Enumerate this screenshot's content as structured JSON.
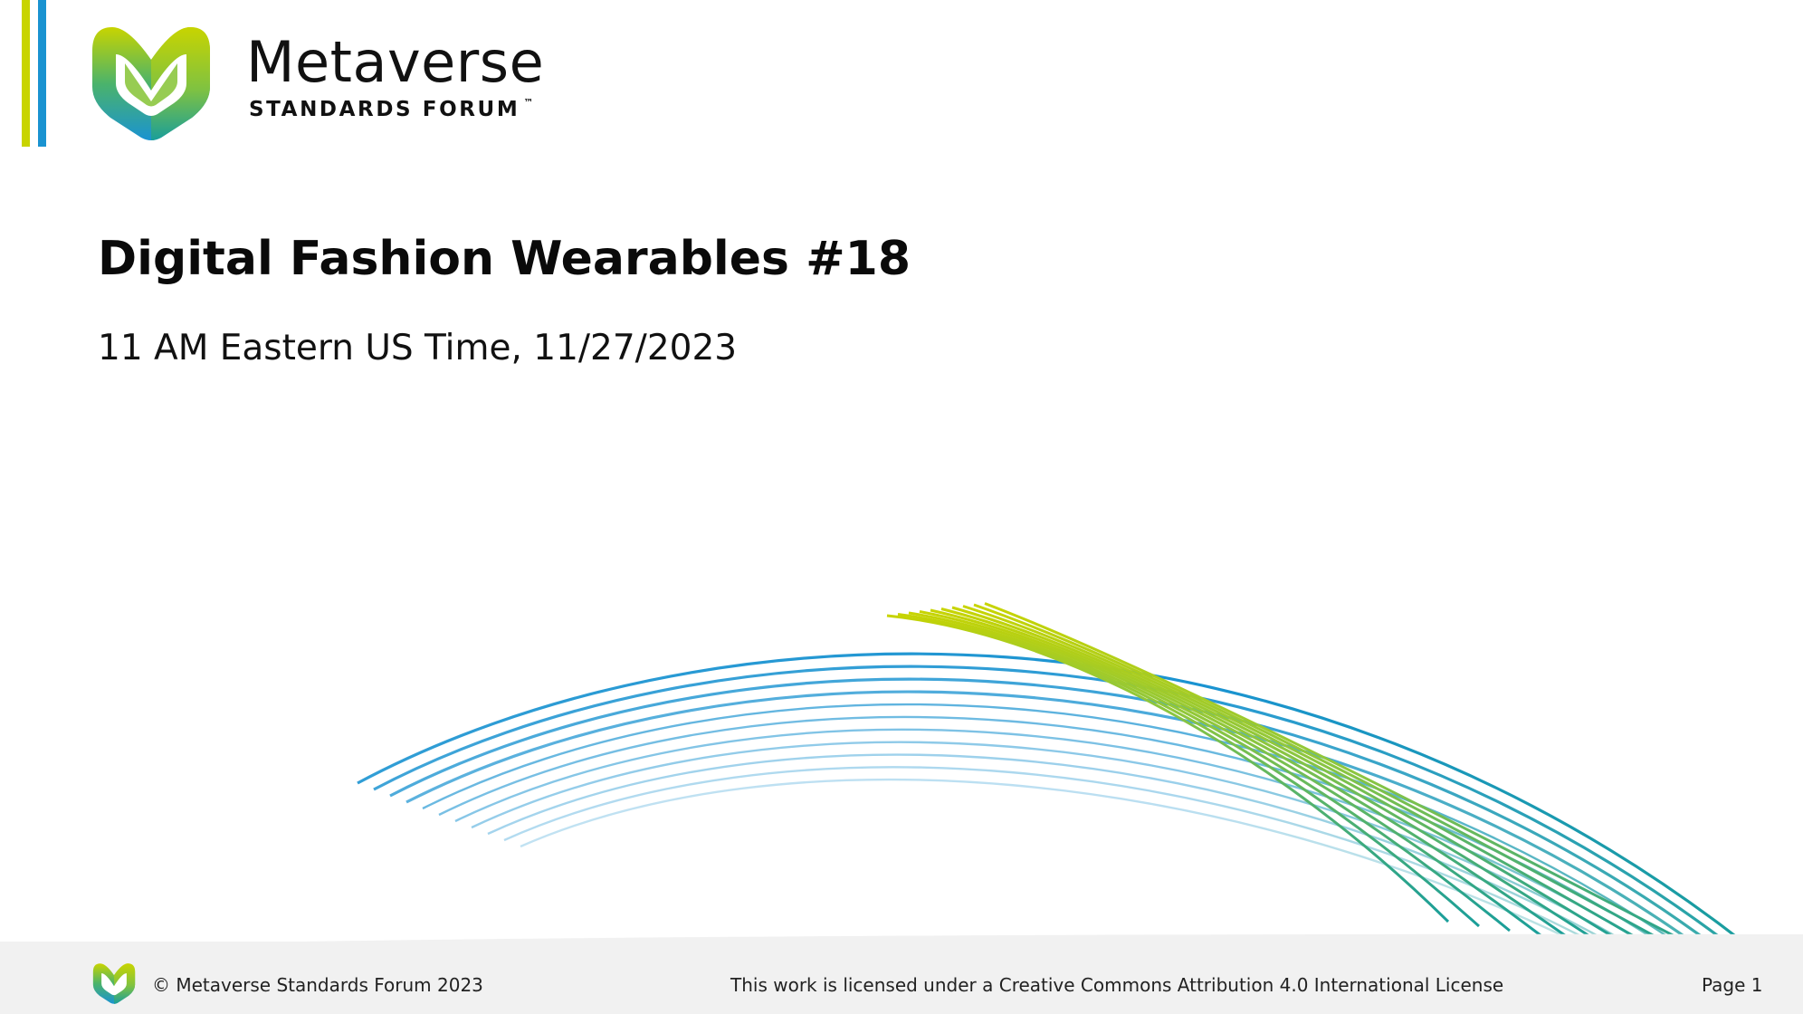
{
  "branding": {
    "name": "Metaverse",
    "subtitle": "STANDARDS FORUM",
    "trademark": "™",
    "colors": {
      "green": "#c8d400",
      "blue": "#1a93d1",
      "teal": "#1a9e9a"
    }
  },
  "slide": {
    "title": "Digital Fashion Wearables #18",
    "subtitle": "11 AM Eastern US Time, 11/27/2023"
  },
  "footer": {
    "copyright": "© Metaverse Standards Forum 2023",
    "license": "This work is licensed under a Creative Commons Attribution 4.0 International License",
    "page": "Page 1"
  }
}
